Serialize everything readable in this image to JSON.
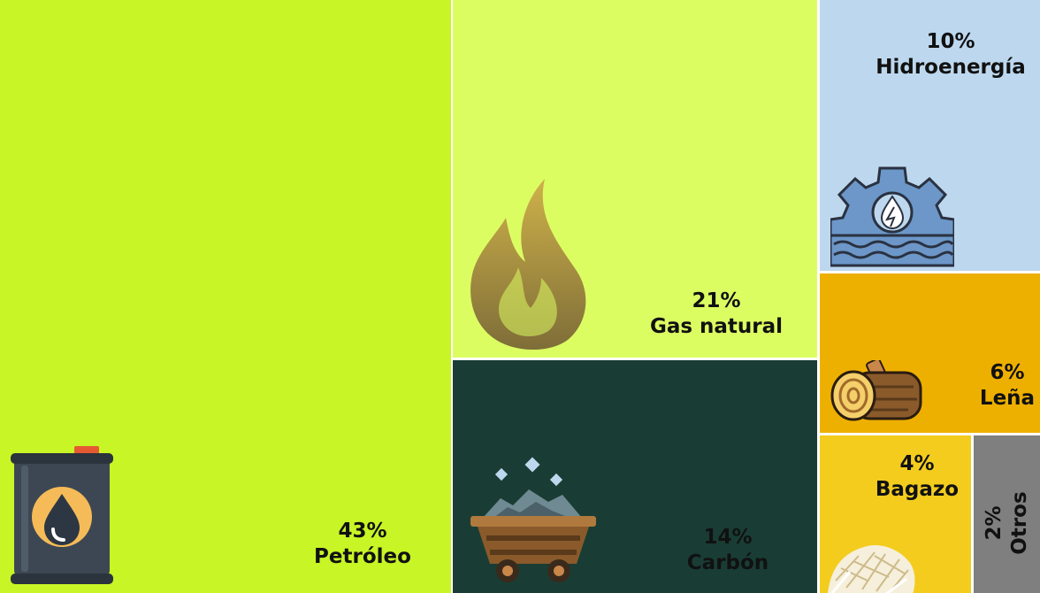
{
  "chart_data": {
    "type": "treemap",
    "items": [
      {
        "pct": "43%",
        "name": "Petróleo",
        "value": 43,
        "color": "#c8f525",
        "text_color": "#111111",
        "icon": "oil-barrel-icon"
      },
      {
        "pct": "21%",
        "name": "Gas natural",
        "value": 21,
        "color": "#dcfd62",
        "text_color": "#111111",
        "icon": "flame-icon"
      },
      {
        "pct": "14%",
        "name": "Carbón",
        "value": 14,
        "color": "#193d34",
        "text_color": "#111111",
        "icon": "coal-cart-icon"
      },
      {
        "pct": "10%",
        "name": "Hidroenergía",
        "value": 10,
        "color": "#bdd8ee",
        "text_color": "#111111",
        "icon": "hydro-gear-icon"
      },
      {
        "pct": "6%",
        "name": "Leña",
        "value": 6,
        "color": "#eeb000",
        "text_color": "#111111",
        "icon": "log-icon"
      },
      {
        "pct": "4%",
        "name": "Bagazo",
        "value": 4,
        "color": "#f3cc1e",
        "text_color": "#111111",
        "icon": "bagasse-icon"
      },
      {
        "pct": "2%",
        "name": "Otros",
        "value": 2,
        "color": "#7f7f7f",
        "text_color": "#111111",
        "icon": ""
      }
    ]
  }
}
